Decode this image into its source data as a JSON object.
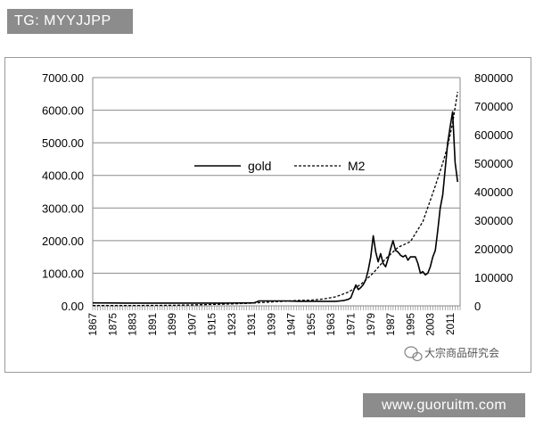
{
  "badges": {
    "top_left": "TG: MYYJJPP",
    "bottom_right": "www.guoruitm.com"
  },
  "watermark": {
    "text": "大宗商品研究会",
    "icon": "wechat-logo-icon"
  },
  "chart_data": {
    "type": "line",
    "title": "",
    "xlabel": "",
    "ylabel": "",
    "y2label": "",
    "x_range": [
      1867,
      2015
    ],
    "xticks": [
      1867,
      1875,
      1883,
      1891,
      1899,
      1907,
      1915,
      1923,
      1931,
      1939,
      1947,
      1955,
      1963,
      1971,
      1979,
      1987,
      1995,
      2003,
      2011
    ],
    "xtick_labels": [
      "1867",
      "1875",
      "1883",
      "1891",
      "1899",
      "1907",
      "1915",
      "1923",
      "1931",
      "1939",
      "1947",
      "1955",
      "1963",
      "1971",
      "1979",
      "1987",
      "1995",
      "2003",
      "2011"
    ],
    "ylim": [
      0,
      7000
    ],
    "yticks": [
      0,
      1000,
      2000,
      3000,
      4000,
      5000,
      6000,
      7000
    ],
    "ytick_labels": [
      "0.00",
      "1000.00",
      "2000.00",
      "3000.00",
      "4000.00",
      "5000.00",
      "6000.00",
      "7000.00"
    ],
    "y2lim": [
      0,
      800000
    ],
    "y2ticks": [
      0,
      100000,
      200000,
      300000,
      400000,
      500000,
      600000,
      700000,
      800000
    ],
    "y2tick_labels": [
      "0",
      "100000",
      "200000",
      "300000",
      "400000",
      "500000",
      "600000",
      "700000",
      "800000"
    ],
    "grid": "horizontal",
    "legend_position": "center-left",
    "series": [
      {
        "name": "gold",
        "axis": "left",
        "style": "solid",
        "x": [
          1867,
          1880,
          1900,
          1920,
          1932,
          1934,
          1940,
          1945,
          1950,
          1955,
          1960,
          1965,
          1968,
          1970,
          1971,
          1972,
          1973,
          1974,
          1975,
          1976,
          1977,
          1978,
          1979,
          1980,
          1981,
          1982,
          1983,
          1984,
          1985,
          1986,
          1987,
          1988,
          1989,
          1990,
          1991,
          1992,
          1993,
          1994,
          1995,
          1996,
          1997,
          1998,
          1999,
          2000,
          2001,
          2002,
          2003,
          2004,
          2005,
          2006,
          2007,
          2008,
          2009,
          2010,
          2011,
          2012,
          2013,
          2014
        ],
        "y": [
          90,
          85,
          85,
          85,
          90,
          150,
          150,
          150,
          140,
          140,
          140,
          140,
          160,
          200,
          250,
          450,
          640,
          500,
          560,
          650,
          800,
          1100,
          1500,
          2150,
          1650,
          1350,
          1600,
          1300,
          1200,
          1450,
          1750,
          2000,
          1700,
          1650,
          1550,
          1500,
          1550,
          1400,
          1500,
          1500,
          1500,
          1300,
          1000,
          1050,
          950,
          1000,
          1200,
          1500,
          1700,
          2300,
          3000,
          3400,
          4200,
          5000,
          5500,
          5950,
          4400,
          3800
        ]
      },
      {
        "name": "M2",
        "axis": "right",
        "style": "dashed",
        "x": [
          1867,
          1880,
          1900,
          1920,
          1930,
          1940,
          1950,
          1955,
          1960,
          1965,
          1970,
          1975,
          1980,
          1985,
          1990,
          1995,
          2000,
          2003,
          2005,
          2008,
          2010,
          2012,
          2014
        ],
        "y": [
          1000,
          1000,
          2000,
          6000,
          9000,
          14000,
          19000,
          20000,
          24000,
          32000,
          48000,
          75000,
          115000,
          165000,
          205000,
          225000,
          295000,
          370000,
          420000,
          500000,
          560000,
          640000,
          750000
        ]
      }
    ]
  }
}
